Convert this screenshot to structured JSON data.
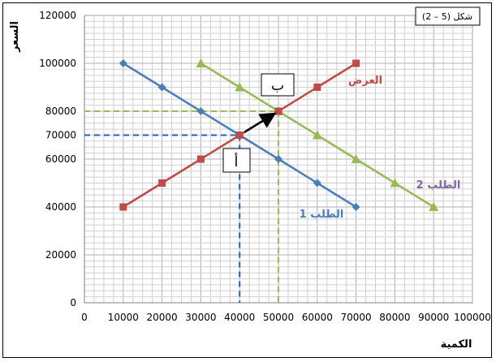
{
  "chart_data": {
    "type": "line",
    "figure_label": "شكل (5 – 2)",
    "xlabel": "الكمية",
    "ylabel": "السعر",
    "xlim": [
      0,
      100000
    ],
    "ylim": [
      0,
      120000
    ],
    "x_ticks": [
      0,
      10000,
      20000,
      30000,
      40000,
      50000,
      60000,
      70000,
      80000,
      90000,
      100000
    ],
    "y_ticks": [
      0,
      20000,
      40000,
      60000,
      70000,
      80000,
      100000,
      120000
    ],
    "grid": true,
    "series": [
      {
        "name": "الطلب 1",
        "color": "#4a7ebb",
        "marker": "diamond",
        "x": [
          10000,
          20000,
          30000,
          40000,
          50000,
          60000,
          70000
        ],
        "y": [
          100000,
          90000,
          80000,
          70000,
          60000,
          50000,
          40000
        ]
      },
      {
        "name": "الطلب 2",
        "color": "#98b954",
        "marker": "triangle",
        "x": [
          30000,
          40000,
          50000,
          60000,
          70000,
          80000,
          90000
        ],
        "y": [
          100000,
          90000,
          80000,
          70000,
          60000,
          50000,
          40000
        ]
      },
      {
        "name": "العرض",
        "color": "#be4b48",
        "marker": "square",
        "x": [
          10000,
          20000,
          30000,
          40000,
          50000,
          60000,
          70000
        ],
        "y": [
          40000,
          50000,
          60000,
          70000,
          80000,
          90000,
          100000
        ]
      }
    ],
    "annotations": {
      "point_a": {
        "label": "أ",
        "x": 40000,
        "y": 70000
      },
      "point_b": {
        "label": "ب",
        "x": 50000,
        "y": 80000
      },
      "arrow": {
        "from": [
          40000,
          70000
        ],
        "to": [
          50000,
          80000
        ]
      },
      "guide_a_color": "#1f5fbf",
      "guide_b_color": "#98b954"
    }
  }
}
